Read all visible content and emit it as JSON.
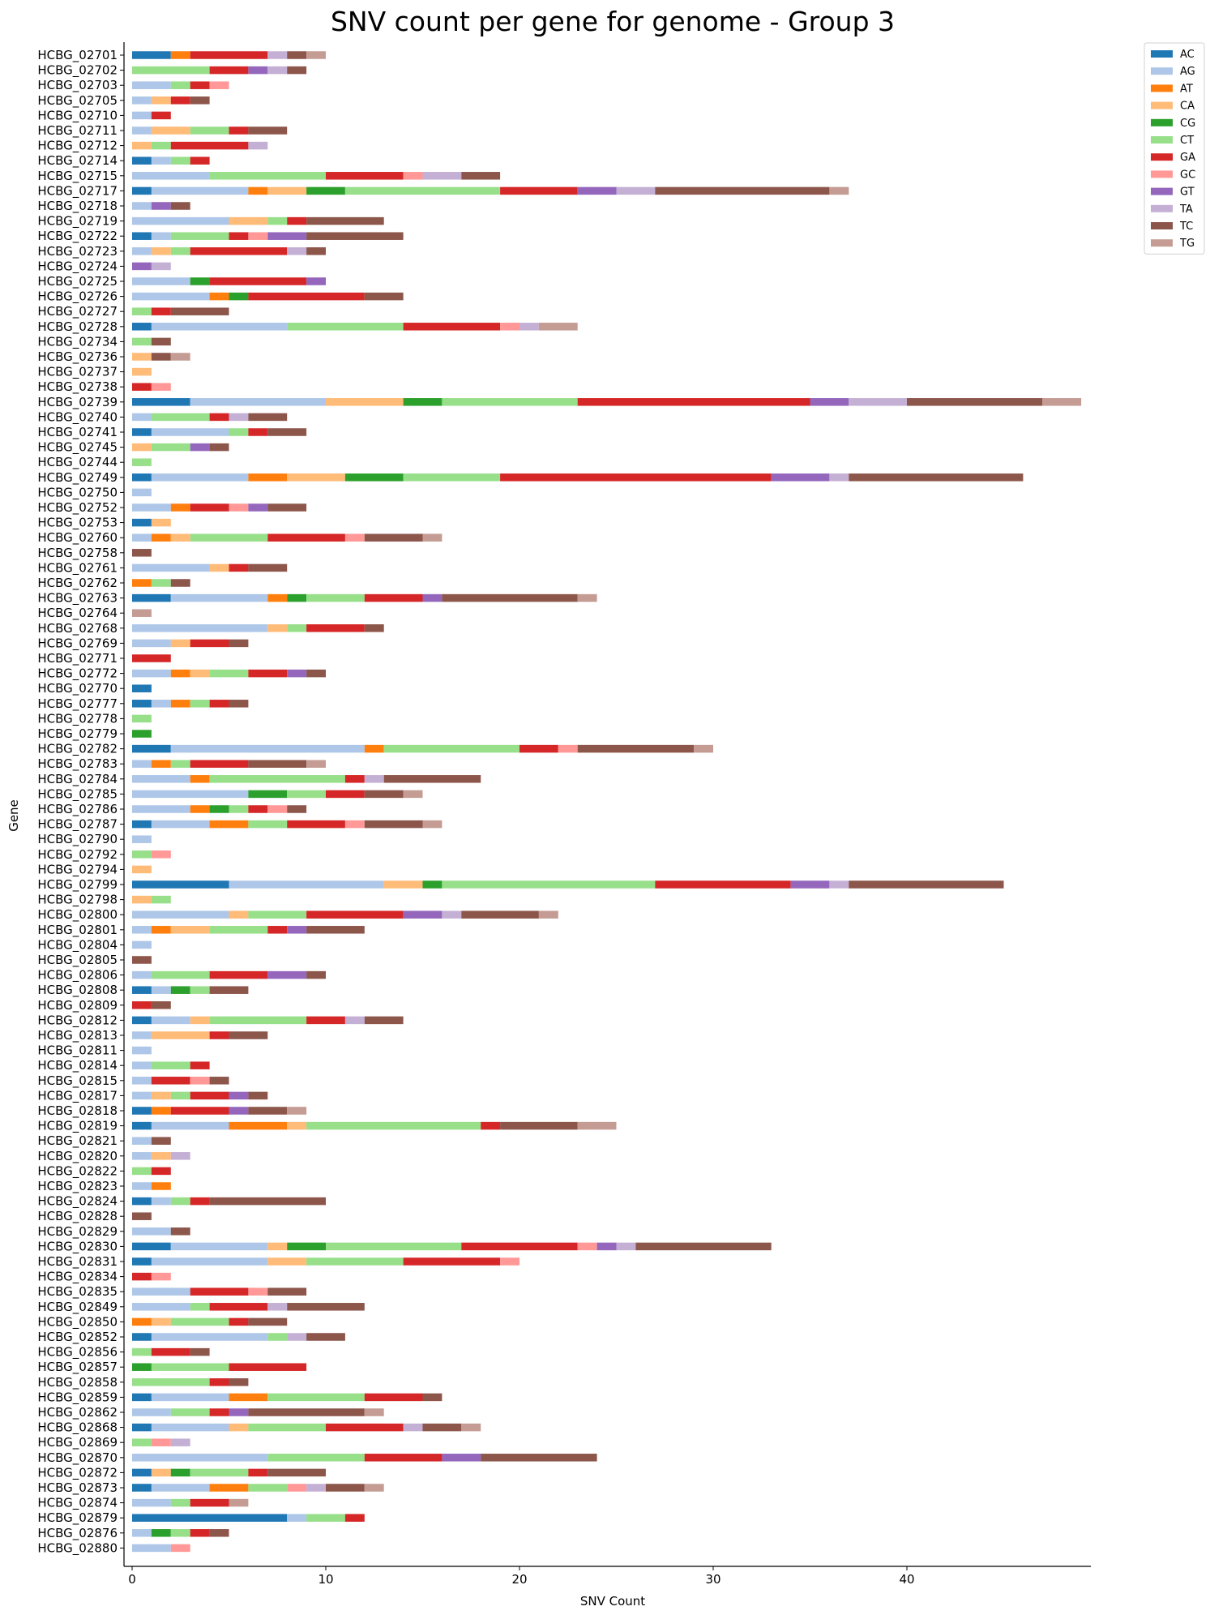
{
  "chart_data": {
    "type": "bar",
    "orientation": "horizontal",
    "stacked": true,
    "title": "SNV count per gene for genome - Group 3",
    "xlabel": "SNV Count",
    "ylabel": "Gene",
    "xlim": [
      0,
      49.5
    ],
    "xticks": [
      0,
      10,
      20,
      30,
      40
    ],
    "grid": false,
    "legend_position": "upper-right-outside",
    "series_names": [
      "AC",
      "AG",
      "AT",
      "CA",
      "CG",
      "CT",
      "GA",
      "GC",
      "GT",
      "TA",
      "TC",
      "TG"
    ],
    "colors": {
      "AC": "#1f77b4",
      "AG": "#aec7e8",
      "AT": "#ff7f0e",
      "CA": "#ffbb78",
      "CG": "#2ca02c",
      "CT": "#98df8a",
      "GA": "#d62728",
      "GC": "#ff9896",
      "GT": "#9467bd",
      "TA": "#c5b0d5",
      "TC": "#8c564b",
      "TG": "#c49c94"
    },
    "genes": [
      {
        "name": "HCBG_02701",
        "AC": 2,
        "AT": 1,
        "GA": 4,
        "TA": 1,
        "TC": 1,
        "TG": 1
      },
      {
        "name": "HCBG_02702",
        "CT": 4,
        "GA": 2,
        "GT": 1,
        "TA": 1,
        "TC": 1
      },
      {
        "name": "HCBG_02703",
        "AG": 2,
        "CT": 1,
        "GA": 1,
        "GC": 1
      },
      {
        "name": "HCBG_02705",
        "AG": 1,
        "CA": 1,
        "GA": 1,
        "TC": 1
      },
      {
        "name": "HCBG_02710",
        "AG": 1,
        "GA": 1
      },
      {
        "name": "HCBG_02711",
        "AG": 1,
        "CA": 2,
        "CT": 2,
        "GA": 1,
        "TC": 2
      },
      {
        "name": "HCBG_02712",
        "CA": 1,
        "CT": 1,
        "GA": 4,
        "TA": 1
      },
      {
        "name": "HCBG_02714",
        "AC": 1,
        "AG": 1,
        "CT": 1,
        "GA": 1
      },
      {
        "name": "HCBG_02715",
        "AG": 4,
        "CT": 6,
        "GA": 4,
        "GC": 1,
        "TA": 2,
        "TC": 2
      },
      {
        "name": "HCBG_02717",
        "AC": 1,
        "AG": 5,
        "AT": 1,
        "CA": 2,
        "CG": 2,
        "CT": 8,
        "GA": 4,
        "GT": 2,
        "TA": 2,
        "TC": 9,
        "TG": 1
      },
      {
        "name": "HCBG_02718",
        "AG": 1,
        "GT": 1,
        "TC": 1
      },
      {
        "name": "HCBG_02719",
        "AG": 5,
        "CA": 2,
        "CT": 1,
        "GA": 1,
        "TC": 4
      },
      {
        "name": "HCBG_02722",
        "AC": 1,
        "AG": 1,
        "CT": 3,
        "GA": 1,
        "GC": 1,
        "GT": 2,
        "TC": 5
      },
      {
        "name": "HCBG_02723",
        "AG": 1,
        "CA": 1,
        "CT": 1,
        "GA": 5,
        "TA": 1,
        "TC": 1
      },
      {
        "name": "HCBG_02724",
        "GT": 1,
        "TA": 1
      },
      {
        "name": "HCBG_02725",
        "AG": 3,
        "CG": 1,
        "GA": 5,
        "GT": 1
      },
      {
        "name": "HCBG_02726",
        "AG": 4,
        "AT": 1,
        "CG": 1,
        "GA": 6,
        "TC": 2
      },
      {
        "name": "HCBG_02727",
        "CT": 1,
        "GA": 1,
        "TC": 3
      },
      {
        "name": "HCBG_02728",
        "AC": 1,
        "AG": 7,
        "CT": 6,
        "GA": 5,
        "GC": 1,
        "TA": 1,
        "TG": 2
      },
      {
        "name": "HCBG_02734",
        "CT": 1,
        "TC": 1
      },
      {
        "name": "HCBG_02736",
        "CA": 1,
        "TC": 1,
        "TG": 1
      },
      {
        "name": "HCBG_02737",
        "CA": 1
      },
      {
        "name": "HCBG_02738",
        "GA": 1,
        "GC": 1
      },
      {
        "name": "HCBG_02739",
        "AC": 3,
        "AG": 7,
        "CA": 4,
        "CG": 2,
        "CT": 7,
        "GA": 12,
        "GT": 2,
        "TA": 3,
        "TC": 7,
        "TG": 2
      },
      {
        "name": "HCBG_02740",
        "AG": 1,
        "CT": 3,
        "GA": 1,
        "TA": 1,
        "TC": 2
      },
      {
        "name": "HCBG_02741",
        "AC": 1,
        "AG": 4,
        "CT": 1,
        "GA": 1,
        "TC": 2
      },
      {
        "name": "HCBG_02745",
        "CA": 1,
        "CT": 2,
        "GT": 1,
        "TC": 1
      },
      {
        "name": "HCBG_02744",
        "CT": 1
      },
      {
        "name": "HCBG_02749",
        "AC": 1,
        "AG": 5,
        "AT": 2,
        "CA": 3,
        "CG": 3,
        "CT": 5,
        "GA": 14,
        "GT": 3,
        "TA": 1,
        "TC": 9
      },
      {
        "name": "HCBG_02750",
        "AG": 1
      },
      {
        "name": "HCBG_02752",
        "AG": 2,
        "AT": 1,
        "GA": 2,
        "GC": 1,
        "GT": 1,
        "TC": 2
      },
      {
        "name": "HCBG_02753",
        "AC": 1,
        "CA": 1
      },
      {
        "name": "HCBG_02760",
        "AG": 1,
        "AT": 1,
        "CA": 1,
        "CT": 4,
        "GA": 4,
        "GC": 1,
        "TC": 3,
        "TG": 1
      },
      {
        "name": "HCBG_02758",
        "TC": 1
      },
      {
        "name": "HCBG_02761",
        "AG": 4,
        "CA": 1,
        "GA": 1,
        "TC": 2
      },
      {
        "name": "HCBG_02762",
        "AT": 1,
        "CT": 1,
        "TC": 1
      },
      {
        "name": "HCBG_02763",
        "AC": 2,
        "AG": 5,
        "AT": 1,
        "CG": 1,
        "CT": 3,
        "GA": 3,
        "GT": 1,
        "TC": 7,
        "TG": 1
      },
      {
        "name": "HCBG_02764",
        "TG": 1
      },
      {
        "name": "HCBG_02768",
        "AG": 7,
        "CA": 1,
        "CT": 1,
        "GA": 3,
        "TC": 1
      },
      {
        "name": "HCBG_02769",
        "AG": 2,
        "CA": 1,
        "GA": 2,
        "TC": 1
      },
      {
        "name": "HCBG_02771",
        "GA": 2
      },
      {
        "name": "HCBG_02772",
        "AG": 2,
        "AT": 1,
        "CA": 1,
        "CT": 2,
        "GA": 2,
        "GT": 1,
        "TC": 1
      },
      {
        "name": "HCBG_02770",
        "AC": 1
      },
      {
        "name": "HCBG_02777",
        "AC": 1,
        "AG": 1,
        "AT": 1,
        "CT": 1,
        "GA": 1,
        "TC": 1
      },
      {
        "name": "HCBG_02778",
        "CT": 1
      },
      {
        "name": "HCBG_02779",
        "CG": 1
      },
      {
        "name": "HCBG_02782",
        "AC": 2,
        "AG": 10,
        "AT": 1,
        "CT": 7,
        "GA": 2,
        "GC": 1,
        "TC": 6,
        "TG": 1
      },
      {
        "name": "HCBG_02783",
        "AG": 1,
        "AT": 1,
        "CT": 1,
        "GA": 3,
        "TC": 3,
        "TG": 1
      },
      {
        "name": "HCBG_02784",
        "AG": 3,
        "AT": 1,
        "CT": 7,
        "GA": 1,
        "TA": 1,
        "TC": 5
      },
      {
        "name": "HCBG_02785",
        "AG": 6,
        "CG": 2,
        "CT": 2,
        "GA": 2,
        "TC": 2,
        "TG": 1
      },
      {
        "name": "HCBG_02786",
        "AG": 3,
        "AT": 1,
        "CG": 1,
        "CT": 1,
        "GA": 1,
        "GC": 1,
        "TC": 1
      },
      {
        "name": "HCBG_02787",
        "AC": 1,
        "AG": 3,
        "AT": 2,
        "CT": 2,
        "GA": 3,
        "GC": 1,
        "TC": 3,
        "TG": 1
      },
      {
        "name": "HCBG_02790",
        "AG": 1
      },
      {
        "name": "HCBG_02792",
        "CT": 1,
        "GC": 1
      },
      {
        "name": "HCBG_02794",
        "CA": 1
      },
      {
        "name": "HCBG_02799",
        "AC": 5,
        "AG": 8,
        "CA": 2,
        "CG": 1,
        "CT": 11,
        "GA": 7,
        "GT": 2,
        "TA": 1,
        "TC": 8
      },
      {
        "name": "HCBG_02798",
        "CA": 1,
        "CT": 1
      },
      {
        "name": "HCBG_02800",
        "AG": 5,
        "CA": 1,
        "CT": 3,
        "GA": 5,
        "GT": 2,
        "TA": 1,
        "TC": 4,
        "TG": 1
      },
      {
        "name": "HCBG_02801",
        "AG": 1,
        "AT": 1,
        "CA": 2,
        "CT": 3,
        "GA": 1,
        "GT": 1,
        "TC": 3
      },
      {
        "name": "HCBG_02804",
        "AG": 1
      },
      {
        "name": "HCBG_02805",
        "TC": 1
      },
      {
        "name": "HCBG_02806",
        "AG": 1,
        "CT": 3,
        "GA": 3,
        "GT": 2,
        "TC": 1
      },
      {
        "name": "HCBG_02808",
        "AC": 1,
        "AG": 1,
        "CG": 1,
        "CT": 1,
        "TC": 2
      },
      {
        "name": "HCBG_02809",
        "GA": 1,
        "TC": 1
      },
      {
        "name": "HCBG_02812",
        "AC": 1,
        "AG": 2,
        "CA": 1,
        "CT": 5,
        "GA": 2,
        "TA": 1,
        "TC": 2
      },
      {
        "name": "HCBG_02813",
        "AG": 1,
        "CA": 3,
        "GA": 1,
        "TC": 2
      },
      {
        "name": "HCBG_02811",
        "AG": 1
      },
      {
        "name": "HCBG_02814",
        "AG": 1,
        "CT": 2,
        "GA": 1
      },
      {
        "name": "HCBG_02815",
        "AG": 1,
        "GA": 2,
        "GC": 1,
        "TC": 1
      },
      {
        "name": "HCBG_02817",
        "AG": 1,
        "CA": 1,
        "CT": 1,
        "GA": 2,
        "GT": 1,
        "TC": 1
      },
      {
        "name": "HCBG_02818",
        "AC": 1,
        "AT": 1,
        "GA": 3,
        "GT": 1,
        "TC": 2,
        "TG": 1
      },
      {
        "name": "HCBG_02819",
        "AC": 1,
        "AG": 4,
        "AT": 3,
        "CA": 1,
        "CT": 9,
        "GA": 1,
        "TC": 4,
        "TG": 2
      },
      {
        "name": "HCBG_02821",
        "AG": 1,
        "TC": 1
      },
      {
        "name": "HCBG_02820",
        "AG": 1,
        "CA": 1,
        "TA": 1
      },
      {
        "name": "HCBG_02822",
        "CT": 1,
        "GA": 1
      },
      {
        "name": "HCBG_02823",
        "AG": 1,
        "AT": 1
      },
      {
        "name": "HCBG_02824",
        "AC": 1,
        "AG": 1,
        "CT": 1,
        "GA": 1,
        "TC": 6
      },
      {
        "name": "HCBG_02828",
        "TC": 1
      },
      {
        "name": "HCBG_02829",
        "AG": 2,
        "TC": 1
      },
      {
        "name": "HCBG_02830",
        "AC": 2,
        "AG": 5,
        "CA": 1,
        "CG": 2,
        "CT": 7,
        "GA": 6,
        "GC": 1,
        "GT": 1,
        "TA": 1,
        "TC": 7
      },
      {
        "name": "HCBG_02831",
        "AC": 1,
        "AG": 6,
        "CA": 2,
        "CT": 5,
        "GA": 5,
        "GC": 1
      },
      {
        "name": "HCBG_02834",
        "GA": 1,
        "GC": 1
      },
      {
        "name": "HCBG_02835",
        "AG": 3,
        "GA": 3,
        "GC": 1,
        "TC": 2
      },
      {
        "name": "HCBG_02849",
        "AG": 3,
        "CT": 1,
        "GA": 3,
        "TA": 1,
        "TC": 4
      },
      {
        "name": "HCBG_02850",
        "AT": 1,
        "CA": 1,
        "CT": 3,
        "GA": 1,
        "TC": 2
      },
      {
        "name": "HCBG_02852",
        "AC": 1,
        "AG": 6,
        "CT": 1,
        "TA": 1,
        "TC": 2
      },
      {
        "name": "HCBG_02856",
        "CT": 1,
        "GA": 2,
        "TC": 1
      },
      {
        "name": "HCBG_02857",
        "CG": 1,
        "CT": 4,
        "GA": 4
      },
      {
        "name": "HCBG_02858",
        "CT": 4,
        "GA": 1,
        "TC": 1
      },
      {
        "name": "HCBG_02859",
        "AC": 1,
        "AG": 4,
        "AT": 2,
        "CT": 5,
        "GA": 3,
        "TC": 1
      },
      {
        "name": "HCBG_02862",
        "AG": 2,
        "CT": 2,
        "GA": 1,
        "GT": 1,
        "TC": 6,
        "TG": 1
      },
      {
        "name": "HCBG_02868",
        "AC": 1,
        "AG": 4,
        "CA": 1,
        "CT": 4,
        "GA": 4,
        "TA": 1,
        "TC": 2,
        "TG": 1
      },
      {
        "name": "HCBG_02869",
        "CT": 1,
        "GC": 1,
        "TA": 1
      },
      {
        "name": "HCBG_02870",
        "AG": 7,
        "CT": 5,
        "GA": 4,
        "GT": 2,
        "TC": 6
      },
      {
        "name": "HCBG_02872",
        "AC": 1,
        "CA": 1,
        "CG": 1,
        "CT": 3,
        "GA": 1,
        "TC": 3
      },
      {
        "name": "HCBG_02873",
        "AC": 1,
        "AG": 3,
        "AT": 2,
        "CT": 2,
        "GC": 1,
        "TA": 1,
        "TC": 2,
        "TG": 1
      },
      {
        "name": "HCBG_02874",
        "AG": 2,
        "CT": 1,
        "GA": 2,
        "TG": 1
      },
      {
        "name": "HCBG_02879",
        "AC": 8,
        "AG": 1,
        "CT": 2,
        "GA": 1
      },
      {
        "name": "HCBG_02876",
        "AG": 1,
        "CG": 1,
        "CT": 1,
        "GA": 1,
        "TC": 1
      },
      {
        "name": "HCBG_02880",
        "AG": 2,
        "GC": 1
      }
    ]
  }
}
